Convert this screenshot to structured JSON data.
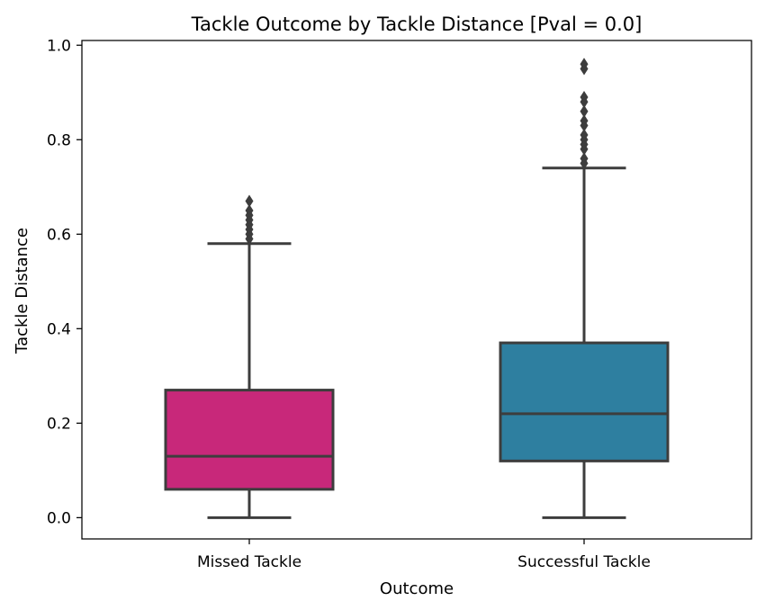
{
  "chart_data": {
    "type": "boxplot",
    "title": "Tackle Outcome by Tackle Distance [Pval = 0.0]",
    "xlabel": "Outcome",
    "ylabel": "Tackle Distance",
    "ylim": [
      -0.045,
      1.01
    ],
    "yticks": [
      0.0,
      0.2,
      0.4,
      0.6,
      0.8,
      1.0
    ],
    "ytick_labels": [
      "0.0",
      "0.2",
      "0.4",
      "0.6",
      "0.8",
      "1.0"
    ],
    "categories": [
      "Missed Tackle",
      "Successful Tackle"
    ],
    "grid": false,
    "legend": "none",
    "boxes": [
      {
        "category": "Missed Tackle",
        "color": "#c8287a",
        "whisker_low": 0.0,
        "q1": 0.06,
        "median": 0.13,
        "q3": 0.27,
        "whisker_high": 0.58,
        "outliers": [
          0.59,
          0.6,
          0.61,
          0.62,
          0.63,
          0.64,
          0.65,
          0.67
        ]
      },
      {
        "category": "Successful Tackle",
        "color": "#2e7fa0",
        "whisker_low": 0.0,
        "q1": 0.12,
        "median": 0.22,
        "q3": 0.37,
        "whisker_high": 0.74,
        "outliers": [
          0.75,
          0.76,
          0.78,
          0.79,
          0.8,
          0.81,
          0.83,
          0.84,
          0.86,
          0.88,
          0.89,
          0.95,
          0.96
        ]
      }
    ]
  }
}
